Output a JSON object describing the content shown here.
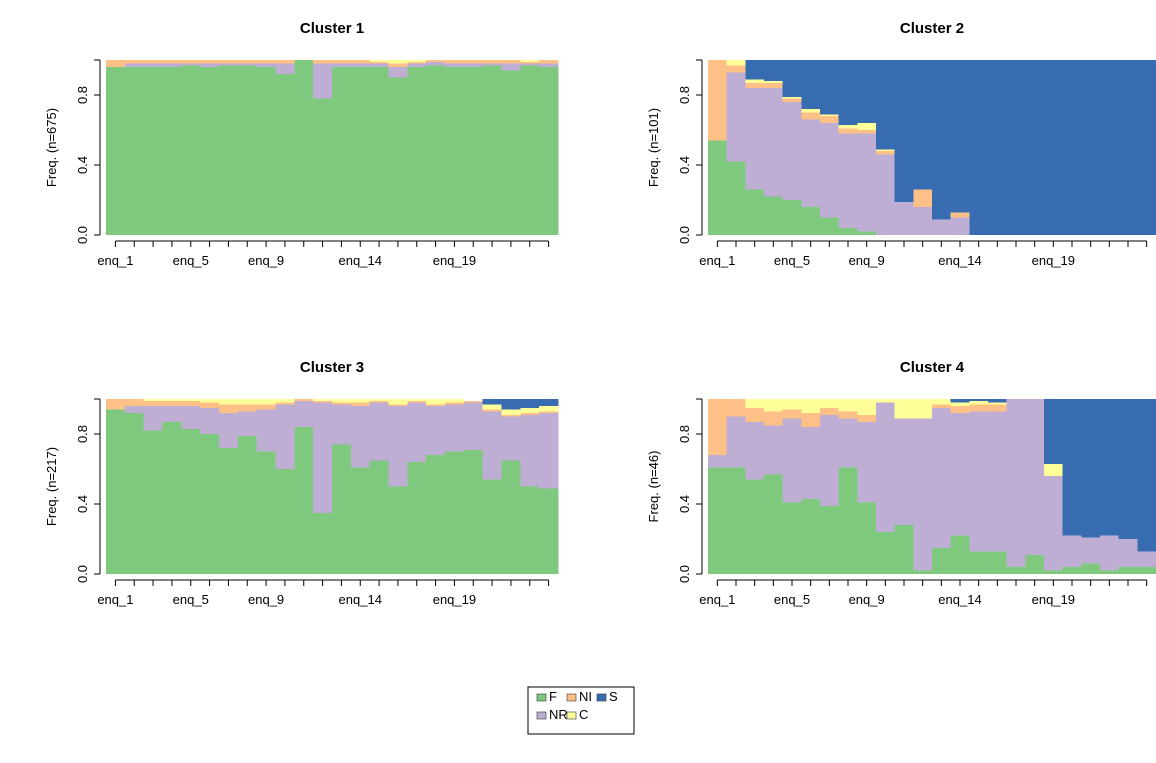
{
  "chart_data": [
    {
      "type": "bar",
      "subtype": "stacked-state-distribution",
      "title": "Cluster 1",
      "ylabel": "Freq. (n=675)",
      "ylim": [
        0,
        1
      ],
      "yticks": [
        "0.0",
        "0.4",
        "0.8"
      ],
      "x_tick_labels": [
        "enq_1",
        "enq_5",
        "enq_9",
        "enq_14",
        "enq_19"
      ],
      "categories": [
        "enq_1",
        "enq_2",
        "enq_3",
        "enq_4",
        "enq_5",
        "enq_6",
        "enq_7",
        "enq_8",
        "enq_9",
        "enq_10",
        "enq_11",
        "enq_12",
        "enq_13",
        "enq_14",
        "enq_15",
        "enq_16",
        "enq_17",
        "enq_18",
        "enq_19",
        "enq_20",
        "enq_21",
        "enq_22",
        "enq_23",
        "enq_24"
      ],
      "series": [
        {
          "name": "F",
          "values": [
            0.96,
            0.96,
            0.96,
            0.96,
            0.97,
            0.96,
            0.97,
            0.97,
            0.96,
            0.92,
            1.0,
            0.78,
            0.96,
            0.96,
            0.96,
            0.9,
            0.96,
            0.97,
            0.96,
            0.96,
            0.97,
            0.94,
            0.97,
            0.96
          ]
        },
        {
          "name": "NR",
          "values": [
            0,
            0.02,
            0.02,
            0.02,
            0.01,
            0.02,
            0.01,
            0.01,
            0.02,
            0.06,
            0,
            0.2,
            0.02,
            0.02,
            0.02,
            0.06,
            0.02,
            0.02,
            0.02,
            0.02,
            0.01,
            0.04,
            0.01,
            0.02
          ]
        },
        {
          "name": "NI",
          "values": [
            0.04,
            0.02,
            0.02,
            0.02,
            0.02,
            0.02,
            0.02,
            0.02,
            0.02,
            0.02,
            0,
            0.02,
            0.02,
            0.02,
            0.01,
            0.02,
            0.01,
            0.01,
            0.02,
            0.02,
            0.02,
            0.02,
            0.01,
            0.02
          ]
        },
        {
          "name": "C",
          "values": [
            0,
            0,
            0,
            0,
            0,
            0,
            0,
            0,
            0,
            0,
            0,
            0,
            0,
            0,
            0.01,
            0.02,
            0.01,
            0,
            0,
            0,
            0,
            0,
            0.01,
            0
          ]
        },
        {
          "name": "S",
          "values": [
            0,
            0,
            0,
            0,
            0,
            0,
            0,
            0,
            0,
            0,
            0,
            0,
            0,
            0,
            0,
            0,
            0,
            0,
            0,
            0,
            0,
            0,
            0,
            0
          ]
        }
      ]
    },
    {
      "type": "bar",
      "subtype": "stacked-state-distribution",
      "title": "Cluster 2",
      "ylabel": "Freq. (n=101)",
      "ylim": [
        0,
        1
      ],
      "yticks": [
        "0.0",
        "0.4",
        "0.8"
      ],
      "x_tick_labels": [
        "enq_1",
        "enq_5",
        "enq_9",
        "enq_14",
        "enq_19"
      ],
      "categories": [
        "enq_1",
        "enq_2",
        "enq_3",
        "enq_4",
        "enq_5",
        "enq_6",
        "enq_7",
        "enq_8",
        "enq_9",
        "enq_10",
        "enq_11",
        "enq_12",
        "enq_13",
        "enq_14",
        "enq_15",
        "enq_16",
        "enq_17",
        "enq_18",
        "enq_19",
        "enq_20",
        "enq_21",
        "enq_22",
        "enq_23",
        "enq_24"
      ],
      "series": [
        {
          "name": "F",
          "values": [
            0.54,
            0.42,
            0.26,
            0.22,
            0.2,
            0.16,
            0.1,
            0.04,
            0.02,
            0,
            0,
            0,
            0,
            0,
            0,
            0,
            0,
            0,
            0,
            0,
            0,
            0,
            0,
            0
          ]
        },
        {
          "name": "NR",
          "values": [
            0,
            0.51,
            0.58,
            0.62,
            0.56,
            0.5,
            0.54,
            0.54,
            0.56,
            0.46,
            0.19,
            0.16,
            0.09,
            0.1,
            0,
            0,
            0,
            0,
            0,
            0,
            0,
            0,
            0,
            0
          ]
        },
        {
          "name": "NI",
          "values": [
            0.46,
            0.04,
            0.03,
            0.03,
            0.02,
            0.04,
            0.04,
            0.03,
            0.02,
            0.02,
            0,
            0.1,
            0,
            0.03,
            0,
            0,
            0,
            0,
            0,
            0,
            0,
            0,
            0,
            0
          ]
        },
        {
          "name": "C",
          "values": [
            0,
            0.03,
            0.02,
            0.01,
            0.01,
            0.02,
            0.01,
            0.02,
            0.04,
            0.01,
            0,
            0,
            0,
            0,
            0,
            0,
            0,
            0,
            0,
            0,
            0,
            0,
            0,
            0
          ]
        },
        {
          "name": "S",
          "values": [
            0,
            0,
            0.11,
            0.12,
            0.21,
            0.28,
            0.31,
            0.37,
            0.36,
            0.51,
            0.81,
            0.74,
            0.91,
            0.87,
            1,
            1,
            1,
            1,
            1,
            1,
            1,
            1,
            1,
            1
          ]
        }
      ]
    },
    {
      "type": "bar",
      "subtype": "stacked-state-distribution",
      "title": "Cluster 3",
      "ylabel": "Freq. (n=217)",
      "ylim": [
        0,
        1
      ],
      "yticks": [
        "0.0",
        "0.4",
        "0.8"
      ],
      "x_tick_labels": [
        "enq_1",
        "enq_5",
        "enq_9",
        "enq_14",
        "enq_19"
      ],
      "categories": [
        "enq_1",
        "enq_2",
        "enq_3",
        "enq_4",
        "enq_5",
        "enq_6",
        "enq_7",
        "enq_8",
        "enq_9",
        "enq_10",
        "enq_11",
        "enq_12",
        "enq_13",
        "enq_14",
        "enq_15",
        "enq_16",
        "enq_17",
        "enq_18",
        "enq_19",
        "enq_20",
        "enq_21",
        "enq_22",
        "enq_23",
        "enq_24"
      ],
      "series": [
        {
          "name": "F",
          "values": [
            0.94,
            0.92,
            0.82,
            0.87,
            0.83,
            0.8,
            0.72,
            0.79,
            0.7,
            0.6,
            0.84,
            0.35,
            0.74,
            0.61,
            0.65,
            0.5,
            0.64,
            0.68,
            0.7,
            0.71,
            0.54,
            0.65,
            0.5,
            0.49
          ]
        },
        {
          "name": "NR",
          "values": [
            0,
            0.04,
            0.14,
            0.09,
            0.13,
            0.15,
            0.2,
            0.14,
            0.24,
            0.37,
            0.15,
            0.63,
            0.23,
            0.35,
            0.33,
            0.46,
            0.34,
            0.28,
            0.27,
            0.27,
            0.39,
            0.25,
            0.41,
            0.43
          ]
        },
        {
          "name": "NI",
          "values": [
            0.06,
            0.04,
            0.03,
            0.03,
            0.03,
            0.03,
            0.05,
            0.04,
            0.03,
            0.01,
            0.01,
            0.01,
            0.01,
            0.02,
            0.01,
            0.01,
            0.01,
            0.01,
            0.01,
            0.01,
            0.01,
            0.01,
            0.01,
            0.01
          ]
        },
        {
          "name": "C",
          "values": [
            0,
            0,
            0.01,
            0.01,
            0.01,
            0.02,
            0.03,
            0.03,
            0.03,
            0.02,
            0,
            0.01,
            0.02,
            0.02,
            0.01,
            0.03,
            0.01,
            0.03,
            0.02,
            0,
            0.03,
            0.03,
            0.03,
            0.03
          ]
        },
        {
          "name": "S",
          "values": [
            0,
            0,
            0,
            0,
            0,
            0,
            0,
            0,
            0,
            0,
            0,
            0,
            0,
            0,
            0,
            0,
            0,
            0,
            0,
            0,
            0.03,
            0.06,
            0.05,
            0.04
          ]
        }
      ]
    },
    {
      "type": "bar",
      "subtype": "stacked-state-distribution",
      "title": "Cluster 4",
      "ylabel": "Freq. (n=46)",
      "ylim": [
        0,
        1
      ],
      "yticks": [
        "0.0",
        "0.4",
        "0.8"
      ],
      "x_tick_labels": [
        "enq_1",
        "enq_5",
        "enq_9",
        "enq_14",
        "enq_19"
      ],
      "categories": [
        "enq_1",
        "enq_2",
        "enq_3",
        "enq_4",
        "enq_5",
        "enq_6",
        "enq_7",
        "enq_8",
        "enq_9",
        "enq_10",
        "enq_11",
        "enq_12",
        "enq_13",
        "enq_14",
        "enq_15",
        "enq_16",
        "enq_17",
        "enq_18",
        "enq_19",
        "enq_20",
        "enq_21",
        "enq_22",
        "enq_23",
        "enq_24"
      ],
      "series": [
        {
          "name": "F",
          "values": [
            0.61,
            0.61,
            0.54,
            0.57,
            0.41,
            0.43,
            0.39,
            0.61,
            0.41,
            0.24,
            0.28,
            0.02,
            0.15,
            0.22,
            0.13,
            0.13,
            0.04,
            0.11,
            0.02,
            0.04,
            0.06,
            0.02,
            0.04,
            0.04
          ]
        },
        {
          "name": "NR",
          "values": [
            0.07,
            0.29,
            0.33,
            0.28,
            0.48,
            0.41,
            0.52,
            0.28,
            0.46,
            0.74,
            0.61,
            0.87,
            0.8,
            0.7,
            0.8,
            0.8,
            0.96,
            0.89,
            0.54,
            0.18,
            0.15,
            0.2,
            0.16,
            0.09
          ]
        },
        {
          "name": "NI",
          "values": [
            0.32,
            0.1,
            0.08,
            0.08,
            0.05,
            0.08,
            0.04,
            0.04,
            0.04,
            0,
            0,
            0,
            0.02,
            0.04,
            0.04,
            0.04,
            0,
            0,
            0,
            0,
            0,
            0,
            0,
            0
          ]
        },
        {
          "name": "C",
          "values": [
            0,
            0,
            0.05,
            0.07,
            0.06,
            0.08,
            0.05,
            0.07,
            0.09,
            0.02,
            0.11,
            0.11,
            0.03,
            0.02,
            0.02,
            0.01,
            0,
            0,
            0.07,
            0,
            0,
            0,
            0,
            0
          ]
        },
        {
          "name": "S",
          "values": [
            0,
            0,
            0,
            0,
            0,
            0,
            0,
            0,
            0,
            0,
            0,
            0,
            0,
            0.02,
            0.01,
            0.02,
            0,
            0,
            0.37,
            0.78,
            0.79,
            0.78,
            0.8,
            0.87
          ]
        }
      ]
    }
  ],
  "legend": {
    "entries": [
      {
        "name": "F",
        "color": "#7FC97F"
      },
      {
        "name": "NR",
        "color": "#BEAED4"
      },
      {
        "name": "NI",
        "color": "#FDC086"
      },
      {
        "name": "C",
        "color": "#FFFF99"
      },
      {
        "name": "S",
        "color": "#386CB0"
      }
    ]
  },
  "colors": {
    "F": "#7FC97F",
    "NR": "#BEAED4",
    "NI": "#FDC086",
    "C": "#FFFF99",
    "S": "#386CB0"
  }
}
